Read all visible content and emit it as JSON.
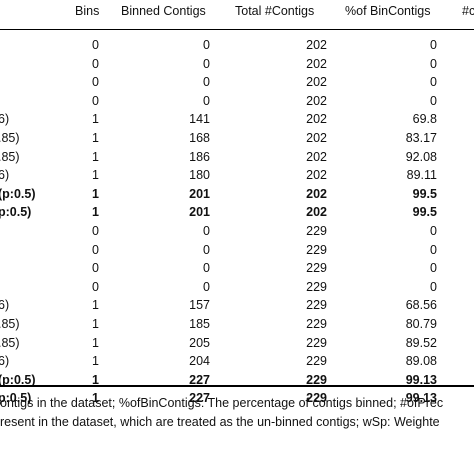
{
  "table": {
    "headers": {
      "bins": "Bins",
      "binned_contigs": "Binned Contigs",
      "total_contigs": "Total #Contigs",
      "pct_bin_contigs": "%of BinContigs",
      "next_col_partial": "#c"
    },
    "rows": [
      {
        "label": "",
        "bins": "0",
        "binned": "0",
        "total": "202",
        "pct": "0",
        "bold": false
      },
      {
        "label": "",
        "bins": "0",
        "binned": "0",
        "total": "202",
        "pct": "0",
        "bold": false
      },
      {
        "label": "",
        "bins": "0",
        "binned": "0",
        "total": "202",
        "pct": "0",
        "bold": false
      },
      {
        "label": "",
        "bins": "0",
        "binned": "0",
        "total": "202",
        "pct": "0",
        "bold": false
      },
      {
        "label": "6)",
        "bins": "1",
        "binned": "141",
        "total": "202",
        "pct": "69.8",
        "bold": false
      },
      {
        "label": ".85)",
        "bins": "1",
        "binned": "168",
        "total": "202",
        "pct": "83.17",
        "bold": false
      },
      {
        "label": ".85)",
        "bins": "1",
        "binned": "186",
        "total": "202",
        "pct": "92.08",
        "bold": false
      },
      {
        "label": "6)",
        "bins": "1",
        "binned": "180",
        "total": "202",
        "pct": "89.11",
        "bold": false
      },
      {
        "label": "(p:0.5)",
        "bins": "1",
        "binned": "201",
        "total": "202",
        "pct": "99.5",
        "bold": true
      },
      {
        "label": "p:0.5)",
        "bins": "1",
        "binned": "201",
        "total": "202",
        "pct": "99.5",
        "bold": true
      },
      {
        "label": "",
        "bins": "0",
        "binned": "0",
        "total": "229",
        "pct": "0",
        "bold": false
      },
      {
        "label": "",
        "bins": "0",
        "binned": "0",
        "total": "229",
        "pct": "0",
        "bold": false
      },
      {
        "label": "",
        "bins": "0",
        "binned": "0",
        "total": "229",
        "pct": "0",
        "bold": false
      },
      {
        "label": "",
        "bins": "0",
        "binned": "0",
        "total": "229",
        "pct": "0",
        "bold": false
      },
      {
        "label": "6)",
        "bins": "1",
        "binned": "157",
        "total": "229",
        "pct": "68.56",
        "bold": false
      },
      {
        "label": ".85)",
        "bins": "1",
        "binned": "185",
        "total": "229",
        "pct": "80.79",
        "bold": false
      },
      {
        "label": ".85)",
        "bins": "1",
        "binned": "205",
        "total": "229",
        "pct": "89.52",
        "bold": false
      },
      {
        "label": "6)",
        "bins": "1",
        "binned": "204",
        "total": "229",
        "pct": "89.08",
        "bold": false
      },
      {
        "label": "(p:0.5)",
        "bins": "1",
        "binned": "227",
        "total": "229",
        "pct": "99.13",
        "bold": true
      },
      {
        "label": "p:0.5)",
        "bins": "1",
        "binned": "227",
        "total": "229",
        "pct": "99.13",
        "bold": true
      }
    ]
  },
  "footnote": {
    "line1": "ontigs in the dataset; %ofBinContigs: The percentage of contigs binned; #ofPrec",
    "line2": "resent in the dataset, which are treated as the un-binned contigs; wSp: Weighte"
  }
}
